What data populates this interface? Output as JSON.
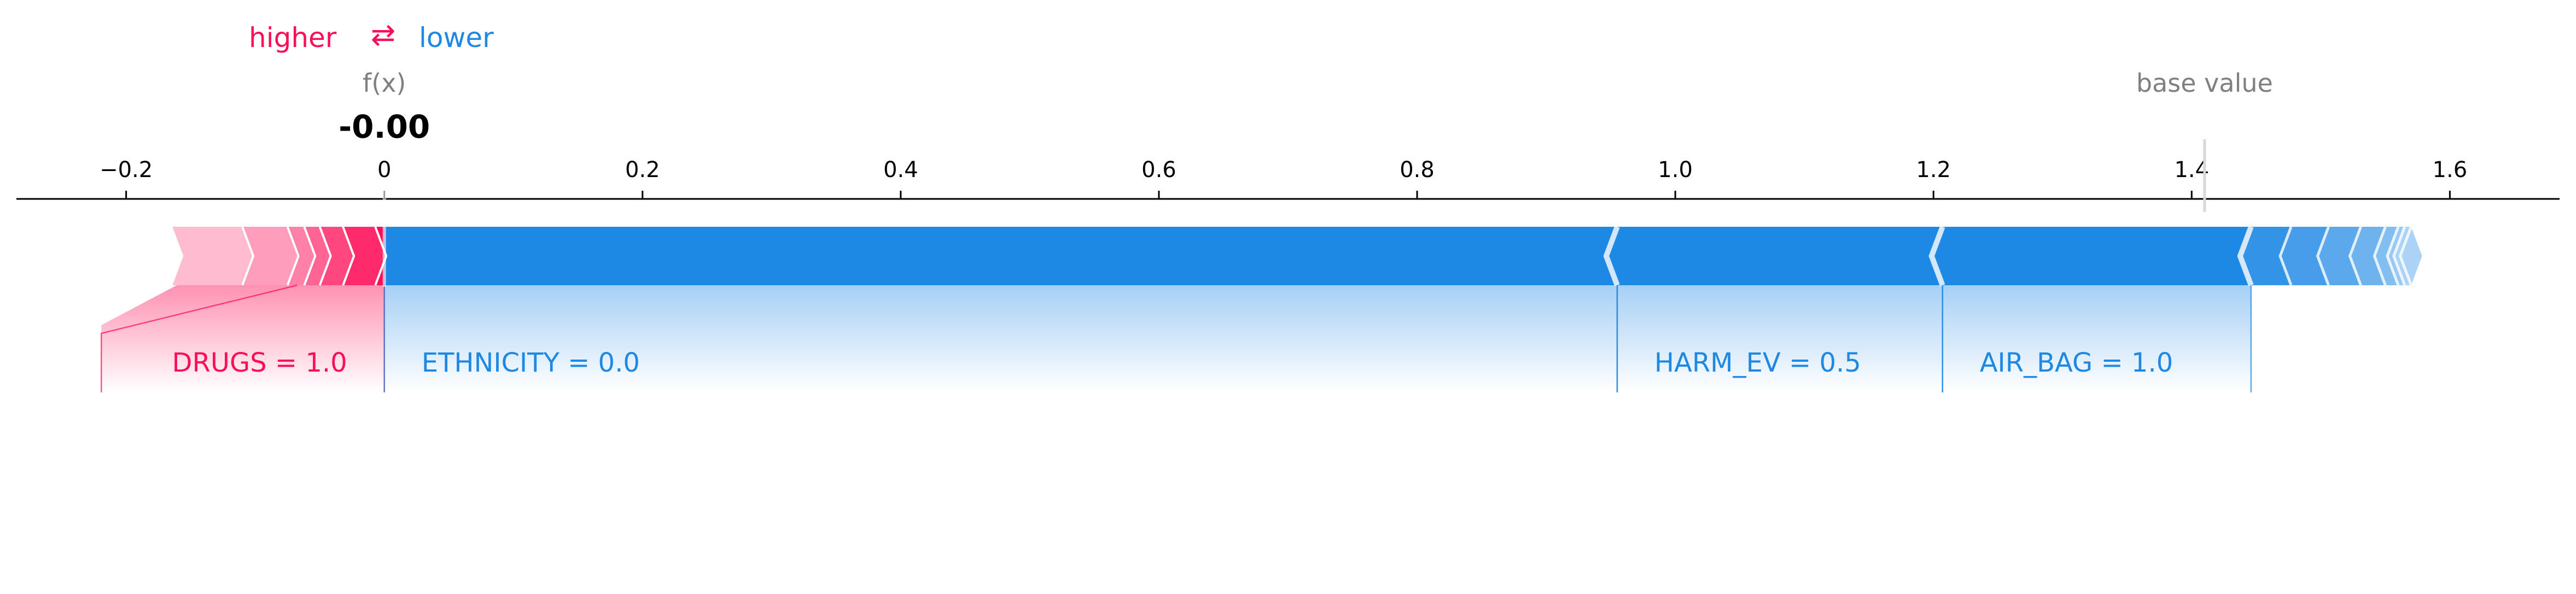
{
  "legend": {
    "higher": "higher",
    "arrows": "⇄",
    "lower": "lower"
  },
  "colors": {
    "positive": "#ff0d57",
    "negative": "#1e88e5",
    "gray": "#808080",
    "axis": "#000000"
  },
  "chart_data": {
    "type": "force",
    "xlim": [
      -0.285,
      1.685
    ],
    "ticks": [
      {
        "value": -0.2,
        "label": "−0.2"
      },
      {
        "value": 0.0,
        "label": "0"
      },
      {
        "value": 0.2,
        "label": "0.2"
      },
      {
        "value": 0.4,
        "label": "0.4"
      },
      {
        "value": 0.6,
        "label": "0.6"
      },
      {
        "value": 0.8,
        "label": "0.8"
      },
      {
        "value": 1.0,
        "label": "1.0"
      },
      {
        "value": 1.2,
        "label": "1.2"
      },
      {
        "value": 1.4,
        "label": "1.4"
      },
      {
        "value": 1.6,
        "label": "1.6"
      }
    ],
    "fx": {
      "caption": "f(x)",
      "value": 0.0,
      "label": "-0.00"
    },
    "base": {
      "caption": "base value",
      "value": 1.41
    },
    "positive_bounds": [
      -0.165,
      -0.11,
      -0.075,
      -0.062,
      -0.05,
      -0.032,
      -0.007,
      0.0
    ],
    "negative_bounds": [
      0.0,
      0.955,
      1.207,
      1.446,
      1.477,
      1.506,
      1.531,
      1.55,
      1.56,
      1.565,
      1.57
    ],
    "labels": [
      {
        "text": "DRUGS = 1.0",
        "side": "positive",
        "from": -0.165,
        "to": 0.0
      },
      {
        "text": "ETHNICITY  = 0.0",
        "side": "negative",
        "from": 0.0,
        "to": 0.955
      },
      {
        "text": "HARM_EV = 0.5",
        "side": "negative",
        "from": 0.955,
        "to": 1.207
      },
      {
        "text": "AIR_BAG = 1.0",
        "side": "negative",
        "from": 1.207,
        "to": 1.446
      }
    ]
  }
}
